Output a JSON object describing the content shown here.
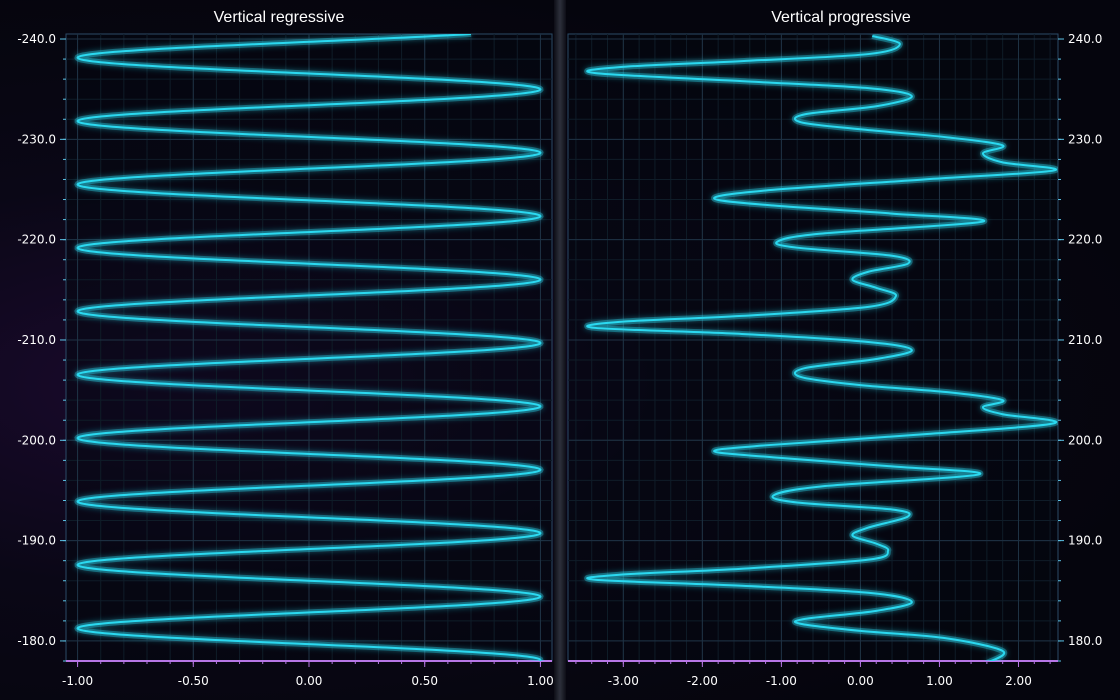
{
  "colors": {
    "line": "#2bd9f0",
    "axis_left": "#5cc3e6",
    "axis_bottom": "#b776e6",
    "grid": "#1f3244",
    "plot_border": "#2b4a66"
  },
  "chart_data": [
    {
      "type": "line",
      "title": "Vertical regressive",
      "orientation": "vertical",
      "xlim": [
        -1.05,
        1.05
      ],
      "ylim": [
        -178,
        -240.5
      ],
      "x_ticks": [
        "-1.00",
        "-0.50",
        "0.00",
        "0.50",
        "1.00"
      ],
      "x_tick_values": [
        -1.0,
        -0.5,
        0.0,
        0.5,
        1.0
      ],
      "y_ticks": [
        "-180.0",
        "-190.0",
        "-200.0",
        "-210.0",
        "-220.0",
        "-230.0",
        "-240.0"
      ],
      "y_tick_values": [
        -180,
        -190,
        -200,
        -210,
        -220,
        -230,
        -240
      ],
      "y_axis_side": "left",
      "grid": true,
      "series": [
        {
          "formula": "x = sin(2*pi*(y - (-178.1))/6.32 + pi/2)",
          "period": 6.32,
          "amplitude": 1.0,
          "y_range": [
            -178,
            -240.5
          ],
          "peak_y_values": [
            -178.1,
            -184.4,
            -190.7,
            -197.0,
            -203.3,
            -209.6,
            -215.9,
            -222.2,
            -228.5,
            -234.8
          ]
        }
      ]
    },
    {
      "type": "line",
      "title": "Vertical progressive",
      "orientation": "vertical",
      "xlim": [
        -3.7,
        2.5
      ],
      "ylim": [
        178,
        240.5
      ],
      "x_ticks": [
        "-3.00",
        "-2.00",
        "-1.00",
        "0.00",
        "1.00",
        "2.00"
      ],
      "x_tick_values": [
        -3,
        -2,
        -1,
        0,
        1,
        2
      ],
      "y_ticks": [
        "180.0",
        "190.0",
        "200.0",
        "210.0",
        "220.0",
        "230.0",
        "240.0"
      ],
      "y_tick_values": [
        180,
        190,
        200,
        210,
        220,
        230,
        240
      ],
      "y_axis_side": "right",
      "grid": true,
      "series": [
        {
          "period": 25,
          "points": [
            {
              "y": 177.8,
              "x": 1.6
            },
            {
              "y": 179.0,
              "x": 1.8
            },
            {
              "y": 180.3,
              "x": 1.05
            },
            {
              "y": 181.0,
              "x": 0.0
            },
            {
              "y": 181.7,
              "x": -0.75
            },
            {
              "y": 182.2,
              "x": -0.7
            },
            {
              "y": 183.0,
              "x": 0.2
            },
            {
              "y": 183.9,
              "x": 0.65
            },
            {
              "y": 184.8,
              "x": 0.1
            },
            {
              "y": 185.5,
              "x": -1.5
            },
            {
              "y": 186.1,
              "x": -3.35
            },
            {
              "y": 186.6,
              "x": -3.05
            },
            {
              "y": 187.2,
              "x": -1.5
            },
            {
              "y": 188.1,
              "x": 0.1
            },
            {
              "y": 189.0,
              "x": 0.35
            },
            {
              "y": 189.7,
              "x": 0.2
            },
            {
              "y": 190.5,
              "x": -0.1
            },
            {
              "y": 191.3,
              "x": 0.1
            },
            {
              "y": 192.4,
              "x": 0.6
            },
            {
              "y": 193.1,
              "x": 0.4
            },
            {
              "y": 193.8,
              "x": -0.8
            },
            {
              "y": 194.5,
              "x": -1.1
            },
            {
              "y": 195.4,
              "x": -0.5
            },
            {
              "y": 196.6,
              "x": 1.5
            },
            {
              "y": 197.4,
              "x": 0.4
            },
            {
              "y": 198.3,
              "x": -1.1
            },
            {
              "y": 198.9,
              "x": -1.85
            },
            {
              "y": 199.5,
              "x": -1.2
            },
            {
              "y": 200.6,
              "x": 0.8
            },
            {
              "y": 201.7,
              "x": 2.45
            },
            {
              "y": 202.6,
              "x": 1.8
            },
            {
              "y": 203.3,
              "x": 1.55
            },
            {
              "y": 204.0,
              "x": 1.8
            },
            {
              "y": 204.8,
              "x": 1.1
            },
            {
              "y": 205.5,
              "x": 0.0
            },
            {
              "y": 206.3,
              "x": -0.75
            },
            {
              "y": 207.2,
              "x": -0.7
            },
            {
              "y": 208.1,
              "x": 0.2
            },
            {
              "y": 209.0,
              "x": 0.65
            },
            {
              "y": 209.8,
              "x": 0.1
            },
            {
              "y": 210.6,
              "x": -1.5
            },
            {
              "y": 211.2,
              "x": -3.35
            },
            {
              "y": 211.8,
              "x": -3.05
            },
            {
              "y": 212.4,
              "x": -1.5
            },
            {
              "y": 213.3,
              "x": 0.1
            },
            {
              "y": 214.4,
              "x": 0.45
            },
            {
              "y": 215.2,
              "x": 0.2
            },
            {
              "y": 216.0,
              "x": -0.1
            },
            {
              "y": 216.8,
              "x": 0.1
            },
            {
              "y": 217.6,
              "x": 0.6
            },
            {
              "y": 218.4,
              "x": 0.4
            },
            {
              "y": 219.2,
              "x": -0.8
            },
            {
              "y": 219.8,
              "x": -1.05
            },
            {
              "y": 220.6,
              "x": -0.5
            },
            {
              "y": 221.8,
              "x": 1.55
            },
            {
              "y": 222.6,
              "x": 0.4
            },
            {
              "y": 223.4,
              "x": -1.1
            },
            {
              "y": 224.1,
              "x": -1.85
            },
            {
              "y": 224.9,
              "x": -1.2
            },
            {
              "y": 226.0,
              "x": 0.8
            },
            {
              "y": 226.9,
              "x": 2.45
            },
            {
              "y": 227.7,
              "x": 1.8
            },
            {
              "y": 228.6,
              "x": 1.55
            },
            {
              "y": 229.4,
              "x": 1.8
            },
            {
              "y": 230.2,
              "x": 1.1
            },
            {
              "y": 231.0,
              "x": 0.0
            },
            {
              "y": 231.7,
              "x": -0.75
            },
            {
              "y": 232.5,
              "x": -0.7
            },
            {
              "y": 233.3,
              "x": 0.2
            },
            {
              "y": 234.3,
              "x": 0.65
            },
            {
              "y": 235.1,
              "x": 0.1
            },
            {
              "y": 235.8,
              "x": -1.5
            },
            {
              "y": 236.6,
              "x": -3.35
            },
            {
              "y": 237.2,
              "x": -3.05
            },
            {
              "y": 237.8,
              "x": -1.5
            },
            {
              "y": 238.5,
              "x": 0.1
            },
            {
              "y": 239.5,
              "x": 0.5
            },
            {
              "y": 240.3,
              "x": 0.15
            }
          ]
        }
      ]
    }
  ]
}
